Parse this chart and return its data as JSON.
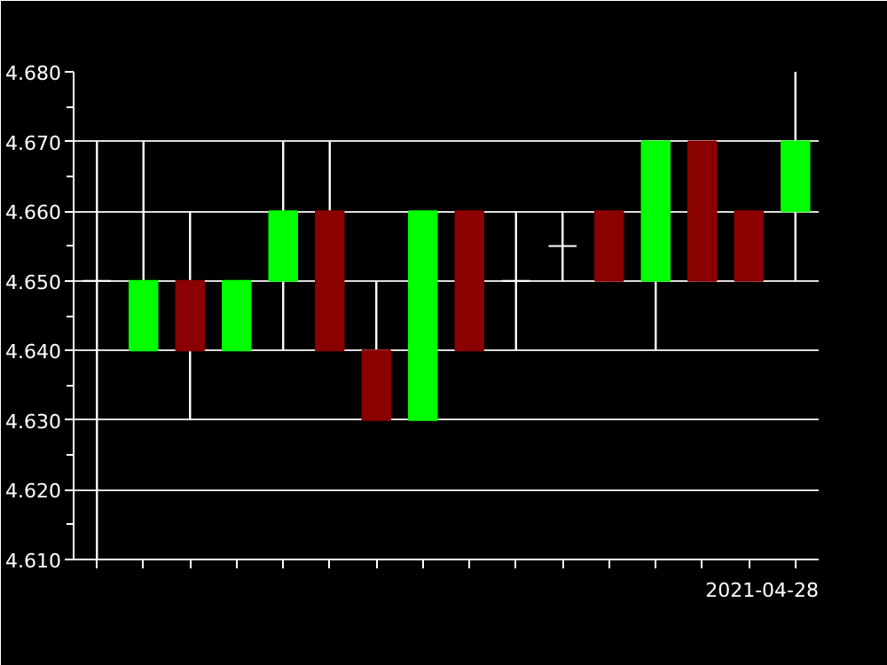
{
  "chart_data": {
    "type": "candlestick",
    "categories": [
      null,
      null,
      null,
      null,
      null,
      null,
      null,
      null,
      null,
      null,
      null,
      null,
      null,
      null,
      null,
      null
    ],
    "ohlc": [
      [
        4.65,
        4.67,
        4.61,
        4.65
      ],
      [
        4.64,
        4.67,
        4.64,
        4.65
      ],
      [
        4.65,
        4.66,
        4.63,
        4.64
      ],
      [
        4.64,
        4.65,
        4.64,
        4.65
      ],
      [
        4.65,
        4.67,
        4.64,
        4.66
      ],
      [
        4.66,
        4.67,
        4.64,
        4.64
      ],
      [
        4.64,
        4.65,
        4.63,
        4.63
      ],
      [
        4.63,
        4.66,
        4.63,
        4.66
      ],
      [
        4.66,
        4.66,
        4.64,
        4.64
      ],
      [
        4.65,
        4.66,
        4.64,
        4.65
      ],
      [
        4.655,
        4.66,
        4.65,
        4.655
      ],
      [
        4.66,
        4.66,
        4.65,
        4.65
      ],
      [
        4.65,
        4.67,
        4.64,
        4.67
      ],
      [
        4.67,
        4.67,
        4.65,
        4.65
      ],
      [
        4.66,
        4.66,
        4.65,
        4.65
      ],
      [
        4.66,
        4.68,
        4.65,
        4.67
      ]
    ],
    "colors": [
      "#ffffff",
      "#00ff00",
      "#8b0000",
      "#00ff00",
      "#00ff00",
      "#8b0000",
      "#8b0000",
      "#00ff00",
      "#8b0000",
      "#ffffff",
      "#ffffff",
      "#8b0000",
      "#00ff00",
      "#8b0000",
      "#8b0000",
      "#00ff00"
    ],
    "ylim": [
      4.61,
      4.68
    ],
    "yticks": [
      {
        "value": 4.61,
        "label": "4.610"
      },
      {
        "value": 4.62,
        "label": "4.620"
      },
      {
        "value": 4.63,
        "label": "4.630"
      },
      {
        "value": 4.64,
        "label": "4.640"
      },
      {
        "value": 4.65,
        "label": "4.650"
      },
      {
        "value": 4.66,
        "label": "4.660"
      },
      {
        "value": 4.67,
        "label": "4.670"
      },
      {
        "value": 4.68,
        "label": "4.680"
      }
    ],
    "grid": "y",
    "tick_labels": "y",
    "annotations": [
      "2021-04-28"
    ]
  }
}
